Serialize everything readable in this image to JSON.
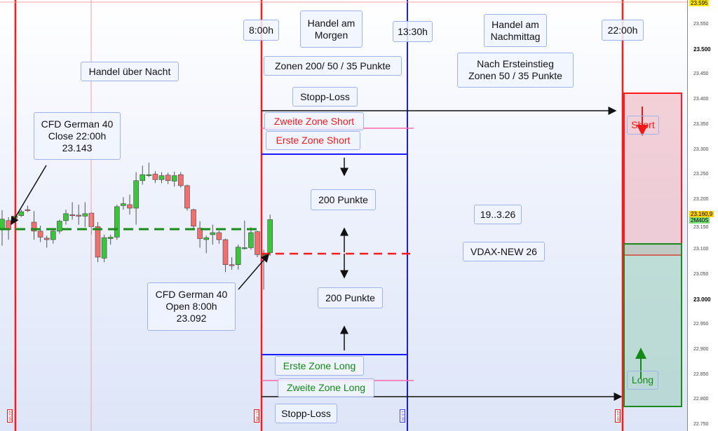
{
  "chart_data": {
    "type": "candlestick",
    "ylim": [
      22750,
      23595
    ],
    "grid": false,
    "price_ticks": [
      "23.550",
      "23.500",
      "23.450",
      "23.400",
      "23.350",
      "23.300",
      "23.250",
      "23.200",
      "23.150",
      "23.100",
      "23.050",
      "23.000",
      "22.950",
      "22.900",
      "22.850",
      "22.800",
      "22.750"
    ],
    "price_tick_values": [
      23550,
      23500,
      23450,
      23400,
      23350,
      23300,
      23250,
      23200,
      23150,
      23100,
      23050,
      23000,
      22950,
      22900,
      22850,
      22800,
      22750
    ],
    "bold_ticks": [
      23500,
      23000
    ],
    "top_price_label": "23.595",
    "current_price_label": "23.160,9",
    "timer_label": "2M40S",
    "candles": [
      [
        23140,
        23179,
        23108,
        23161
      ],
      [
        23158,
        23165,
        23120,
        23140
      ],
      [
        23163,
        23172,
        23160,
        23167
      ],
      [
        23168,
        23180,
        23165,
        23176
      ],
      [
        23180,
        23188,
        23175,
        23178
      ],
      [
        23155,
        23177,
        23120,
        23137
      ],
      [
        23137,
        23148,
        23115,
        23125
      ],
      [
        23123,
        23128,
        23104,
        23120
      ],
      [
        23120,
        23140,
        23112,
        23137
      ],
      [
        23137,
        23160,
        23132,
        23157
      ],
      [
        23158,
        23180,
        23150,
        23172
      ],
      [
        23170,
        23195,
        23160,
        23169
      ],
      [
        23169,
        23190,
        23150,
        23167
      ],
      [
        23167,
        23195,
        23145,
        23172
      ],
      [
        23173,
        23176,
        23130,
        23146
      ],
      [
        23146,
        23155,
        23075,
        23085
      ],
      [
        23083,
        23130,
        23075,
        23124
      ],
      [
        23122,
        23130,
        23110,
        23125
      ],
      [
        23125,
        23190,
        23120,
        23186
      ],
      [
        23188,
        23205,
        23180,
        23192
      ],
      [
        23190,
        23210,
        23170,
        23183
      ],
      [
        23183,
        23255,
        23150,
        23238
      ],
      [
        23238,
        23268,
        23230,
        23250
      ],
      [
        23250,
        23274,
        23245,
        23250
      ],
      [
        23251,
        23257,
        23233,
        23240
      ],
      [
        23240,
        23255,
        23233,
        23248
      ],
      [
        23249,
        23254,
        23231,
        23238
      ],
      [
        23237,
        23256,
        23226,
        23248
      ],
      [
        23250,
        23255,
        23224,
        23228
      ],
      [
        23228,
        23230,
        23178,
        23183
      ],
      [
        23180,
        23182,
        23140,
        23147
      ],
      [
        23143,
        23157,
        23104,
        23122
      ],
      [
        23120,
        23128,
        23093,
        23124
      ],
      [
        23130,
        23150,
        23110,
        23134
      ],
      [
        23134,
        23138,
        23112,
        23120
      ],
      [
        23120,
        23122,
        23055,
        23070
      ],
      [
        23070,
        23085,
        23060,
        23068
      ],
      [
        23070,
        23110,
        23060,
        23105
      ],
      [
        23104,
        23158,
        23100,
        23104
      ],
      [
        23104,
        23145,
        23100,
        23134
      ],
      [
        23136,
        23138,
        23085,
        23090
      ],
      [
        23090,
        23100,
        23020,
        23090
      ],
      [
        23094,
        23170,
        23088,
        23160
      ]
    ],
    "close_level": 23143,
    "open_level": 23092,
    "colors": {
      "up": "#3cc43c",
      "down": "#f07070",
      "session_line": "#ff1a1a",
      "blue_line": "#1a1aff",
      "zone_line": "#ff66aa"
    }
  },
  "annotations": {
    "overnight": "Handel über Nacht",
    "close_box": [
      "CFD German 40",
      "Close 22:00h",
      "23.143"
    ],
    "open_box": [
      "CFD German 40",
      "Open 8:00h",
      "23.092"
    ],
    "t0800": "8:00h",
    "morning": [
      "Handel am",
      "Morgen"
    ],
    "t1330": "13:30h",
    "afternoon": [
      "Handel am",
      "Nachmittag"
    ],
    "t2200": "22:00h",
    "zones_morning": "Zonen 200/ 50 / 35 Punkte",
    "zones_afternoon": [
      "Nach Ersteinstieg",
      "Zonen 50 / 35 Punkte"
    ],
    "stop_loss_top": "Stopp-Loss",
    "second_zone_short": "Zweite Zone Short",
    "first_zone_short": "Erste Zone Short",
    "points_top": "200 Punkte",
    "points_bottom": "200 Punkte",
    "date": "19..3.26",
    "vdax": "VDAX-NEW 26",
    "first_zone_long": "Erste Zone Long",
    "second_zone_long": "Zweite Zone Long",
    "stop_loss_bottom": "Stopp-Loss",
    "short": "Short",
    "long": "Long"
  },
  "time_markers": [
    "22:00",
    "07:45",
    "13:30",
    "22:00"
  ]
}
